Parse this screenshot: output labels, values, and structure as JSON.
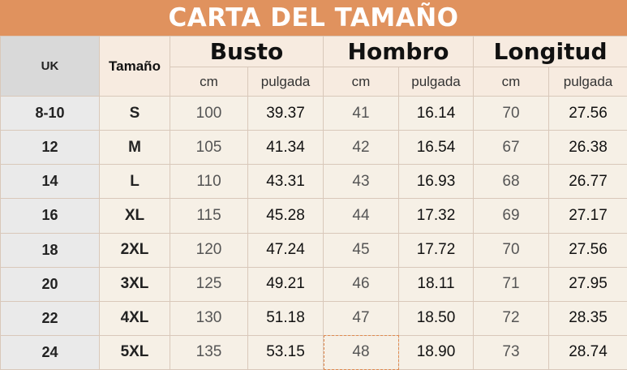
{
  "title": "CARTA DEL TAMAÑO",
  "headers": {
    "uk": "UK",
    "tamano": "Tamaño",
    "busto": "Busto",
    "hombro": "Hombro",
    "longitud": "Longitud",
    "cm": "cm",
    "pulgada": "pulgada"
  },
  "rows": [
    {
      "uk": "8-10",
      "size": "S",
      "busto_cm": "100",
      "busto_in": "39.37",
      "hombro_cm": "41",
      "hombro_in": "16.14",
      "long_cm": "70",
      "long_in": "27.56"
    },
    {
      "uk": "12",
      "size": "M",
      "busto_cm": "105",
      "busto_in": "41.34",
      "hombro_cm": "42",
      "hombro_in": "16.54",
      "long_cm": "67",
      "long_in": "26.38"
    },
    {
      "uk": "14",
      "size": "L",
      "busto_cm": "110",
      "busto_in": "43.31",
      "hombro_cm": "43",
      "hombro_in": "16.93",
      "long_cm": "68",
      "long_in": "26.77"
    },
    {
      "uk": "16",
      "size": "XL",
      "busto_cm": "115",
      "busto_in": "45.28",
      "hombro_cm": "44",
      "hombro_in": "17.32",
      "long_cm": "69",
      "long_in": "27.17"
    },
    {
      "uk": "18",
      "size": "2XL",
      "busto_cm": "120",
      "busto_in": "47.24",
      "hombro_cm": "45",
      "hombro_in": "17.72",
      "long_cm": "70",
      "long_in": "27.56"
    },
    {
      "uk": "20",
      "size": "3XL",
      "busto_cm": "125",
      "busto_in": "49.21",
      "hombro_cm": "46",
      "hombro_in": "18.11",
      "long_cm": "71",
      "long_in": "27.95"
    },
    {
      "uk": "22",
      "size": "4XL",
      "busto_cm": "130",
      "busto_in": "51.18",
      "hombro_cm": "47",
      "hombro_in": "18.50",
      "long_cm": "72",
      "long_in": "28.35"
    },
    {
      "uk": "24",
      "size": "5XL",
      "busto_cm": "135",
      "busto_in": "53.15",
      "hombro_cm": "48",
      "hombro_in": "18.90",
      "long_cm": "73",
      "long_in": "28.74"
    }
  ],
  "colors": {
    "banner": "#e0925e",
    "header_bg": "#f7ebe0",
    "cell_bg": "#f6f0e6",
    "uk_bg": "#eaeaea"
  }
}
